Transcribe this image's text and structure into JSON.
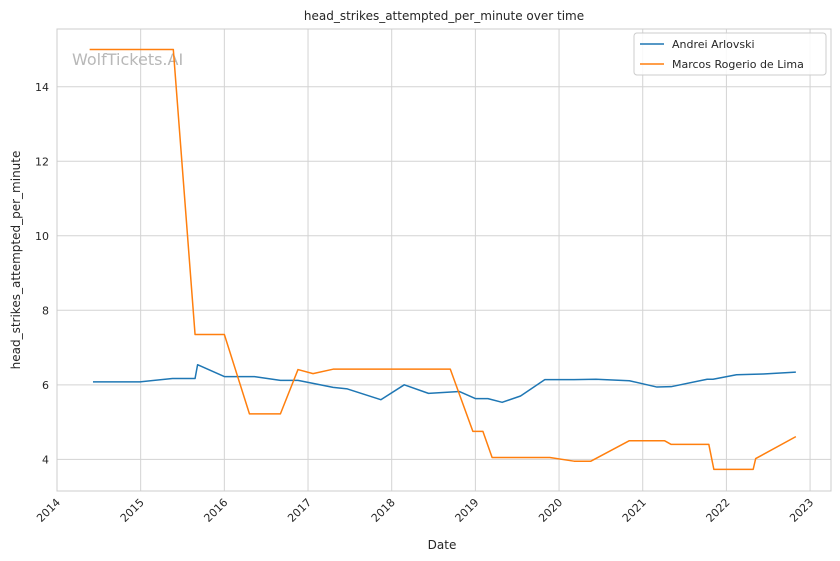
{
  "chart_data": {
    "type": "line",
    "title": "head_strikes_attempted_per_minute over time",
    "xlabel": "Date",
    "ylabel": "head_strikes_attempted_per_minute",
    "watermark": "WolfTickets.AI",
    "xlim": [
      2014.0,
      2023.25
    ],
    "ylim": [
      3.15,
      15.55
    ],
    "x_ticks": [
      2014,
      2015,
      2016,
      2017,
      2018,
      2019,
      2020,
      2021,
      2022,
      2023
    ],
    "y_ticks": [
      4,
      6,
      8,
      10,
      12,
      14
    ],
    "grid": true,
    "legend_position": "top-right",
    "colors": {
      "series_0": "#1f77b4",
      "series_1": "#ff7f0e",
      "grid": "#d3d3d3",
      "axes": "#cccccc"
    },
    "series": [
      {
        "name": "Andrei Arlovski",
        "x": [
          2014.43,
          2014.99,
          2015.38,
          2015.65,
          2015.68,
          2016.0,
          2016.36,
          2016.67,
          2016.88,
          2017.3,
          2017.47,
          2017.87,
          2018.15,
          2018.44,
          2018.81,
          2019.0,
          2019.15,
          2019.32,
          2019.54,
          2019.83,
          2020.18,
          2020.44,
          2020.84,
          2021.17,
          2021.34,
          2021.77,
          2021.84,
          2022.12,
          2022.44,
          2022.83
        ],
        "y": [
          6.08,
          6.08,
          6.17,
          6.17,
          6.54,
          6.22,
          6.22,
          6.12,
          6.12,
          5.93,
          5.89,
          5.6,
          6.0,
          5.77,
          5.82,
          5.63,
          5.63,
          5.53,
          5.7,
          6.14,
          6.14,
          6.15,
          6.11,
          5.94,
          5.95,
          6.15,
          6.15,
          6.27,
          6.29,
          6.34
        ]
      },
      {
        "name": "Marcos Rogerio de Lima",
        "x": [
          2014.39,
          2015.39,
          2015.65,
          2016.0,
          2016.3,
          2016.67,
          2016.88,
          2017.06,
          2017.3,
          2018.7,
          2018.97,
          2019.09,
          2019.2,
          2019.89,
          2020.18,
          2020.38,
          2020.84,
          2021.26,
          2021.34,
          2021.79,
          2021.85,
          2022.32,
          2022.35,
          2022.83
        ],
        "y": [
          15.0,
          15.0,
          7.35,
          7.35,
          5.22,
          5.22,
          6.41,
          6.3,
          6.42,
          6.42,
          4.75,
          4.75,
          4.05,
          4.05,
          3.95,
          3.95,
          4.5,
          4.5,
          4.4,
          4.4,
          3.73,
          3.73,
          4.02,
          4.61
        ]
      }
    ]
  }
}
